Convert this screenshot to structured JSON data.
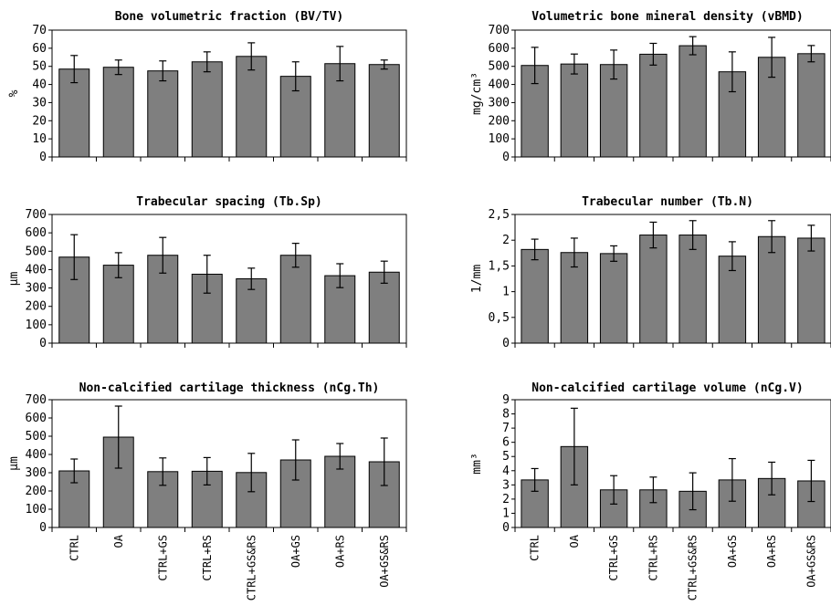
{
  "categories": [
    "CTRL",
    "OA",
    "CTRL+GS",
    "CTRL+RS",
    "CTRL+GS&RS",
    "OA+GS",
    "OA+RS",
    "OA+GS&RS"
  ],
  "chart_data": [
    {
      "type": "bar",
      "title": "Bone volumetric fraction (BV/TV)",
      "ylabel": "%",
      "ylim": [
        0,
        70
      ],
      "yticks": [
        "0",
        "10",
        "20",
        "30",
        "40",
        "50",
        "60",
        "70"
      ],
      "values": [
        48.5,
        49.5,
        47.5,
        52.5,
        55.5,
        44.5,
        51.5,
        51.0
      ],
      "errors": [
        7.5,
        4.0,
        5.5,
        5.5,
        7.5,
        8.0,
        9.5,
        2.5
      ]
    },
    {
      "type": "bar",
      "title": "Volumetric bone mineral density (vBMD)",
      "ylabel": "mg/cm³",
      "ylim": [
        0,
        700
      ],
      "yticks": [
        "0",
        "100",
        "200",
        "300",
        "400",
        "500",
        "600",
        "700"
      ],
      "values": [
        505,
        513,
        510,
        567,
        614,
        470,
        550,
        570
      ],
      "errors": [
        100,
        55,
        80,
        60,
        50,
        110,
        110,
        45
      ]
    },
    {
      "type": "bar",
      "title": "Trabecular spacing (Tb.Sp)",
      "ylabel": "µm",
      "ylim": [
        0,
        700
      ],
      "yticks": [
        "0",
        "100",
        "200",
        "300",
        "400",
        "500",
        "600",
        "700"
      ],
      "values": [
        468,
        424,
        478,
        375,
        350,
        478,
        367,
        386
      ],
      "errors": [
        122,
        68,
        97,
        103,
        58,
        65,
        65,
        60
      ]
    },
    {
      "type": "bar",
      "title": "Trabecular number (Tb.N)",
      "ylabel": "1/mm",
      "ylim": [
        0,
        2.5
      ],
      "yticks": [
        "0",
        "0,5",
        "1",
        "1,5",
        "2",
        "2,5"
      ],
      "values": [
        1.82,
        1.76,
        1.74,
        2.1,
        2.1,
        1.69,
        2.07,
        2.04
      ],
      "errors": [
        0.2,
        0.28,
        0.15,
        0.25,
        0.28,
        0.28,
        0.31,
        0.25
      ]
    },
    {
      "type": "bar",
      "title": "Non-calcified cartilage thickness (nCg.Th)",
      "ylabel": "µm",
      "ylim": [
        0,
        700
      ],
      "yticks": [
        "0",
        "100",
        "200",
        "300",
        "400",
        "500",
        "600",
        "700"
      ],
      "values": [
        310,
        495,
        306,
        308,
        301,
        370,
        390,
        360
      ],
      "errors": [
        65,
        170,
        75,
        75,
        105,
        110,
        70,
        130
      ]
    },
    {
      "type": "bar",
      "title": "Non-calcified cartilage volume (nCg.V)",
      "ylabel": "mm³",
      "ylim": [
        0,
        9
      ],
      "yticks": [
        "0",
        "1",
        "2",
        "3",
        "4",
        "5",
        "6",
        "7",
        "8",
        "9"
      ],
      "values": [
        3.35,
        5.7,
        2.65,
        2.65,
        2.55,
        3.35,
        3.45,
        3.28
      ],
      "errors": [
        0.8,
        2.7,
        1.0,
        0.9,
        1.3,
        1.5,
        1.15,
        1.45
      ]
    }
  ]
}
